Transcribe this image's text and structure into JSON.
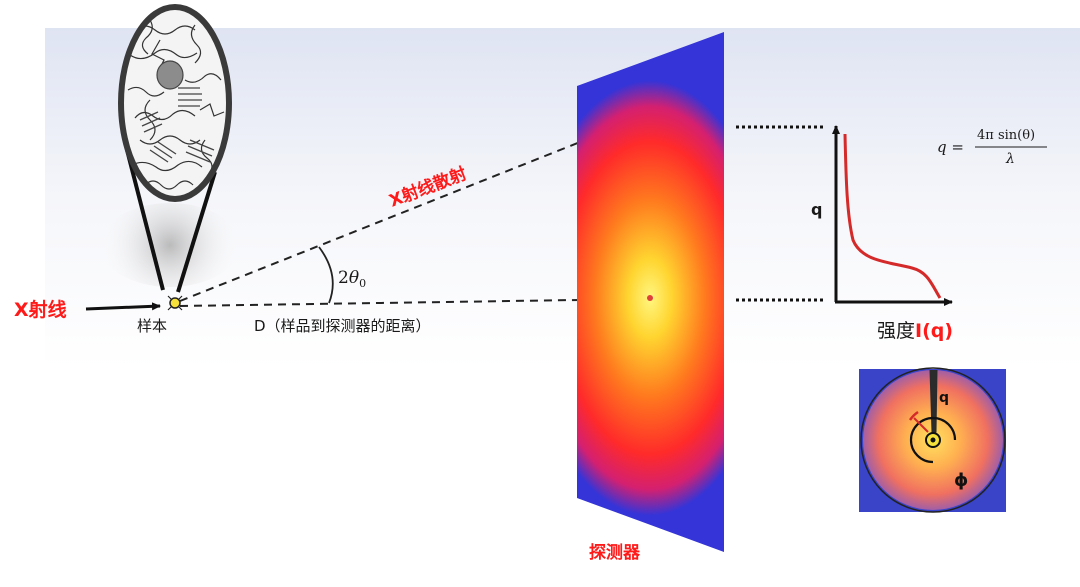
{
  "labels": {
    "xray": "X射线",
    "sample": "样本",
    "scatter": "X射线散射",
    "distance": "D（样品到探测器的距离）",
    "angle_prefix": "2",
    "angle_symbol": "θ",
    "angle_sub": "0",
    "detector": "探测器",
    "q_axis": "q",
    "intensity_prefix": "强度",
    "intensity_func": "I(q)",
    "inset_q": "q",
    "inset_phi": "ϕ"
  },
  "formula": {
    "lhs": "q =",
    "numerator": "4π sin(θ)",
    "denominator": "λ"
  },
  "colors": {
    "label_red": "#ff1a1a",
    "text_dark": "#1a1a1a",
    "curve": "#d42a2a",
    "detector_center": "#fff25a",
    "detector_mid": "#ff2828",
    "detector_edge": "#3434d8"
  }
}
